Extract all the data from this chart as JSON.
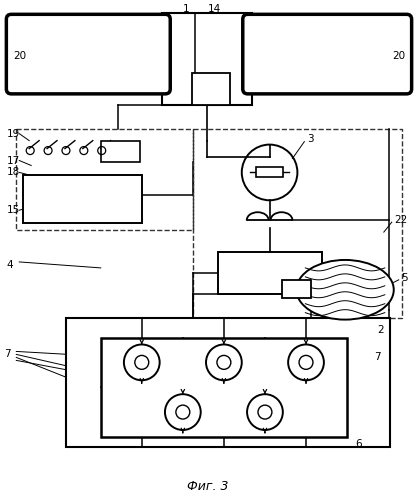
{
  "title": "Фиг. 3",
  "bg_color": "#ffffff",
  "lc": "#000000",
  "gc": "#aaaaaa"
}
